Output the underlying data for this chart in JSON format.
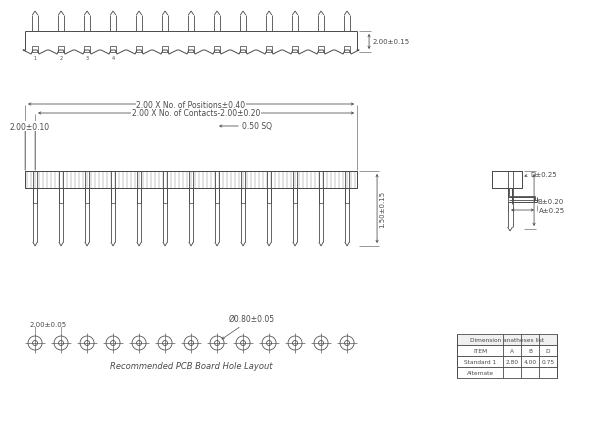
{
  "bg_color": "#ffffff",
  "line_color": "#4a4a4a",
  "n_pins": 13,
  "table_title": "Dimension anatheses list",
  "table_headers": [
    "ITEM",
    "A",
    "B",
    "D"
  ],
  "table_rows": [
    [
      "Standard 1",
      "2.80",
      "4.00",
      "0.75"
    ],
    [
      "Alternate",
      "",
      "",
      ""
    ]
  ],
  "pcb_label": "Recommended PCB Board Hole Layout",
  "dim_labels": {
    "overall_positions": "2.00 X No. of Positions±0.40",
    "contacts": "2.00 X No. of Contacts-2.00±0.20",
    "left_dim": "2.00±0.10",
    "sq_dim": "0.50 SQ",
    "height_dim": "1.50±0.15",
    "top_dim": "2.00±0.15",
    "pcb_spacing": "2.00±0.05",
    "hole_dia": "Ø0.80±0.05",
    "side_b": "B±0.20",
    "side_d": "D±0.25",
    "side_a": "A±0.25"
  }
}
